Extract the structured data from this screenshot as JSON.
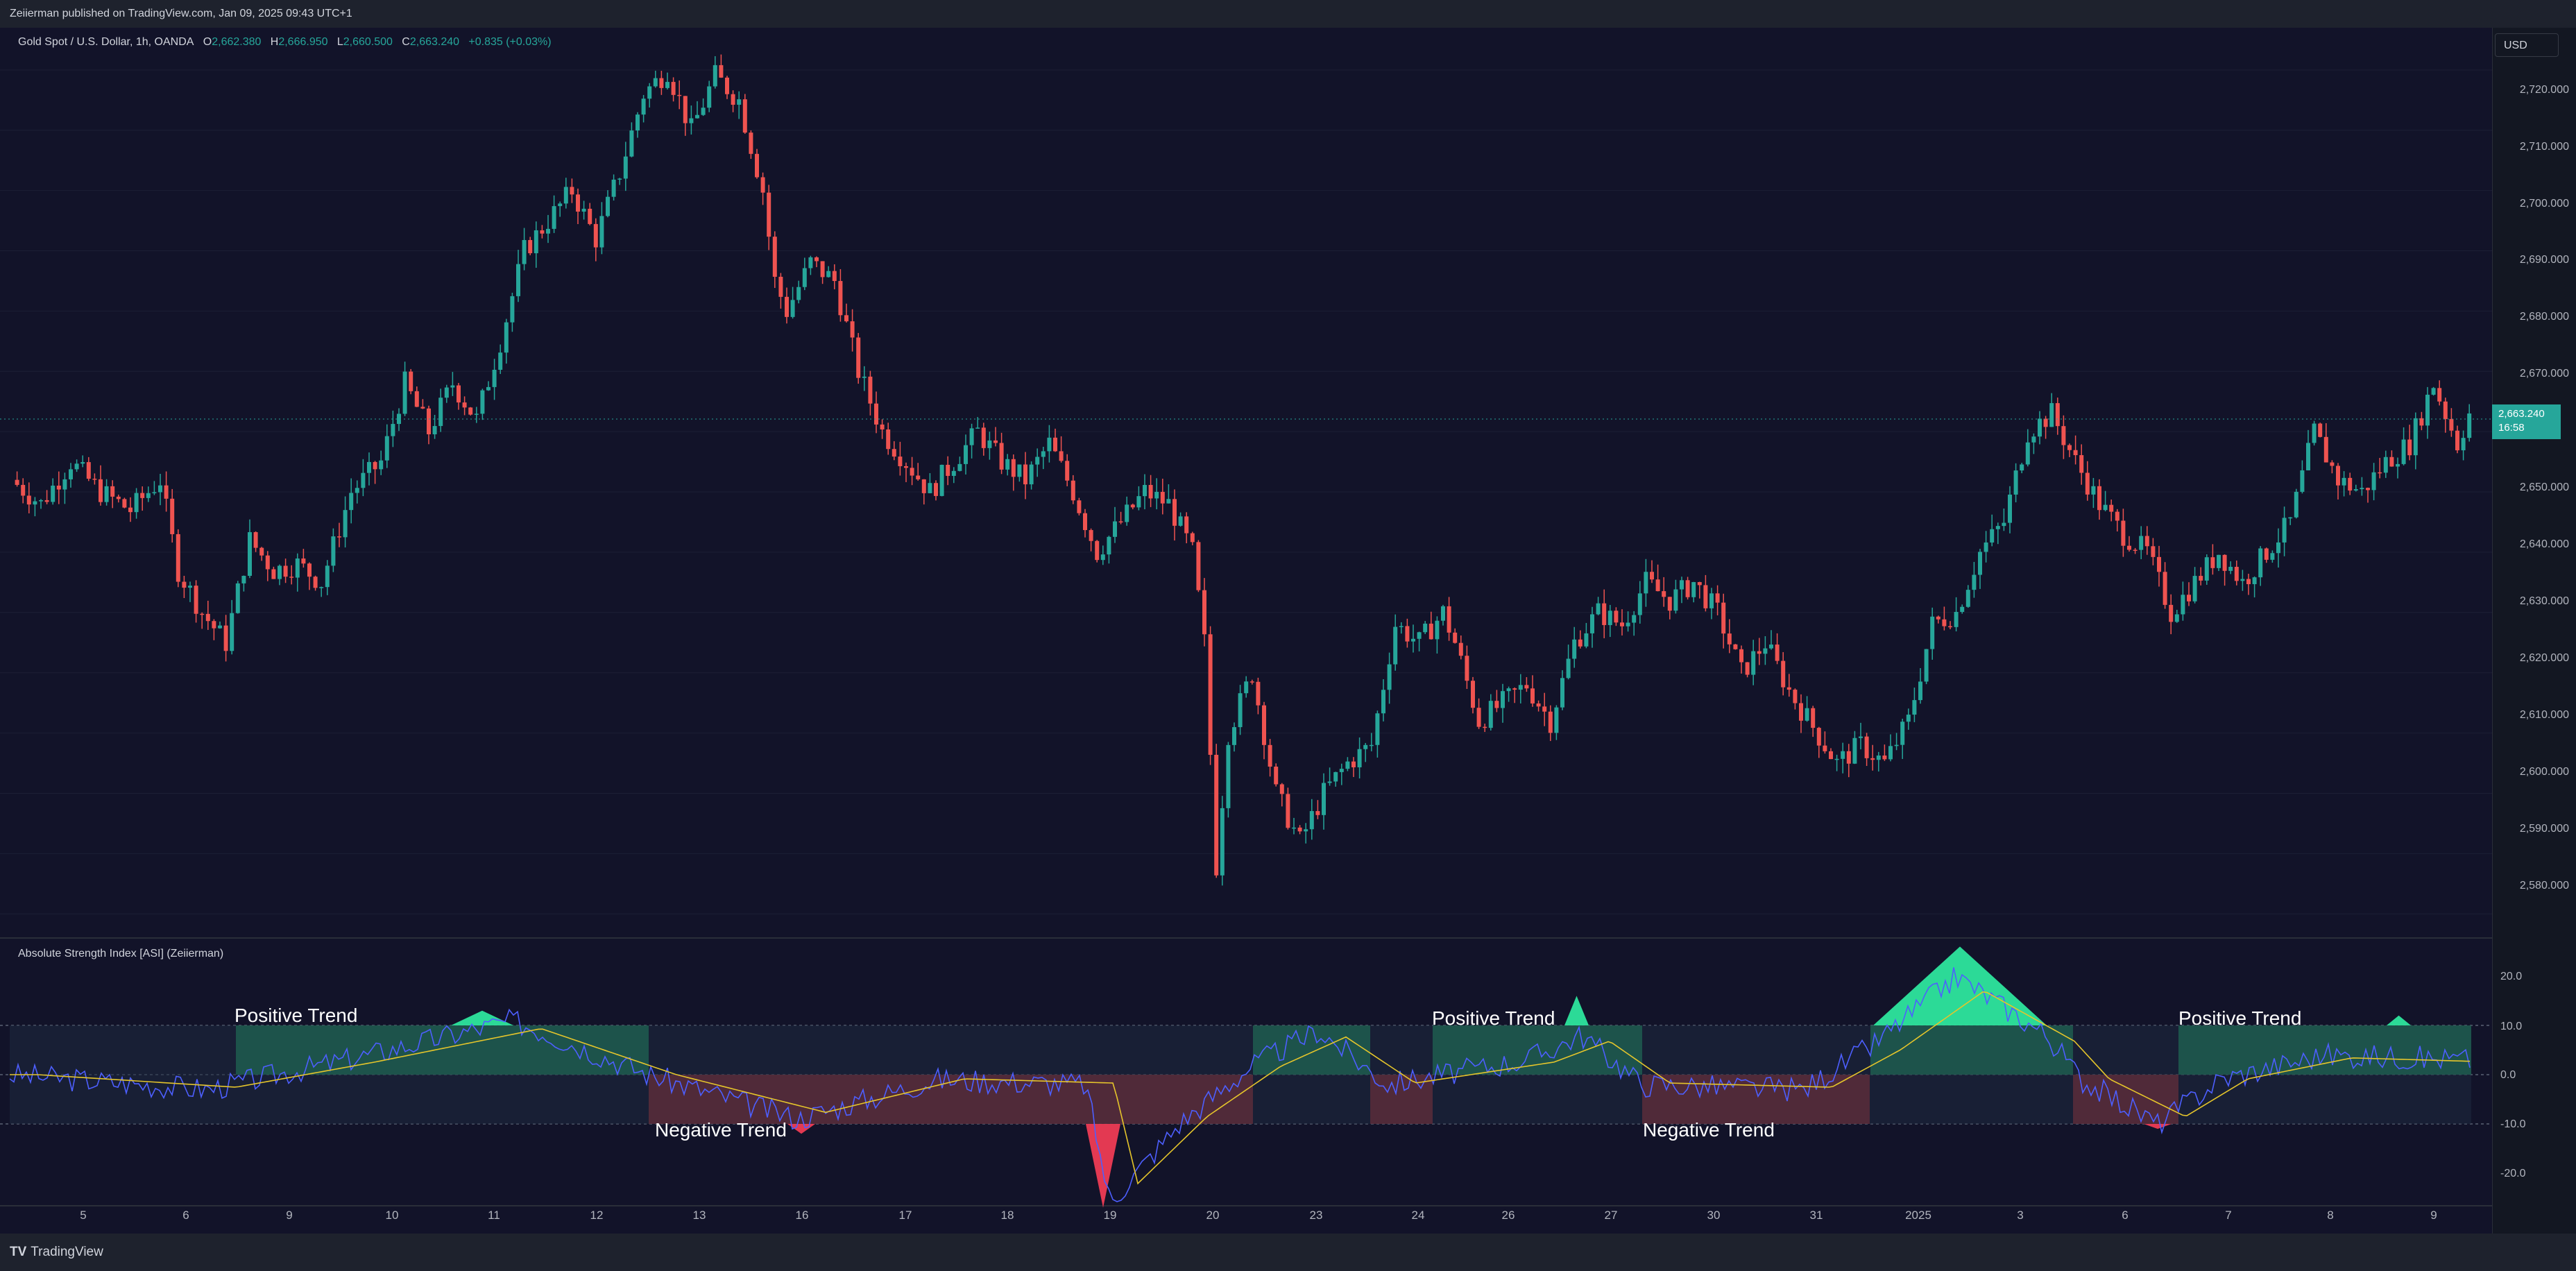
{
  "header": {
    "published_text": "Zeiierman published on TradingView.com, Jan 09, 2025 09:43 UTC+1"
  },
  "legend": {
    "symbol": "Gold Spot / U.S. Dollar, 1h, OANDA",
    "open_label": "O",
    "open_value": "2,662.380",
    "high_label": "H",
    "high_value": "2,666.950",
    "low_label": "L",
    "low_value": "2,660.500",
    "close_label": "C",
    "close_value": "2,663.240",
    "change": "+0.835 (+0.03%)"
  },
  "currency_button": "USD",
  "price_axis": [
    "2,720.000",
    "2,710.000",
    "2,700.000",
    "2,690.000",
    "2,680.000",
    "2,670.000",
    "2,650.000",
    "2,640.000",
    "2,630.000",
    "2,620.000",
    "2,610.000",
    "2,600.000",
    "2,590.000",
    "2,580.000"
  ],
  "current_price": {
    "price": "2,663.240",
    "countdown": "16:58"
  },
  "indicator": {
    "title": "Absolute Strength Index [ASI] (Zeiierman)",
    "axis": [
      "20.0",
      "10.0",
      "0.0",
      "-10.0",
      "-20.0"
    ],
    "labels": [
      "Positive Trend",
      "Positive Trend",
      "Positive Trend",
      "Negative Trend",
      "Negative Trend"
    ]
  },
  "time_axis": [
    "5",
    "6",
    "9",
    "10",
    "11",
    "12",
    "13",
    "16",
    "17",
    "18",
    "19",
    "20",
    "23",
    "24",
    "26",
    "27",
    "30",
    "31",
    "2025",
    "3",
    "6",
    "7",
    "8",
    "9"
  ],
  "footer": {
    "brand": "TradingView",
    "brand_mark": "TV"
  },
  "colors": {
    "up": "#26a69a",
    "down": "#ef5350",
    "background": "#121329",
    "asi_line": "#4d5fff",
    "signal_line": "#e5c52b"
  },
  "chart_data": {
    "type": "candlestick",
    "title": "Gold Spot / U.S. Dollar, 1h, OANDA",
    "ylim": [
      2576,
      2727
    ],
    "x_ticks": [
      "5",
      "6",
      "9",
      "10",
      "11",
      "12",
      "13",
      "16",
      "17",
      "18",
      "19",
      "20",
      "23",
      "24",
      "26",
      "27",
      "30",
      "31",
      "2025",
      "3",
      "6",
      "7",
      "8",
      "9"
    ],
    "anchors": [
      [
        0,
        2652
      ],
      [
        5,
        2648
      ],
      [
        10,
        2655
      ],
      [
        15,
        2650
      ],
      [
        20,
        2647
      ],
      [
        25,
        2652
      ],
      [
        28,
        2637
      ],
      [
        32,
        2630
      ],
      [
        36,
        2625
      ],
      [
        40,
        2642
      ],
      [
        44,
        2637
      ],
      [
        48,
        2638
      ],
      [
        52,
        2635
      ],
      [
        57,
        2650
      ],
      [
        62,
        2655
      ],
      [
        66,
        2668
      ],
      [
        70,
        2660
      ],
      [
        74,
        2668
      ],
      [
        78,
        2662
      ],
      [
        82,
        2675
      ],
      [
        86,
        2690
      ],
      [
        90,
        2695
      ],
      [
        94,
        2700
      ],
      [
        98,
        2692
      ],
      [
        102,
        2703
      ],
      [
        106,
        2716
      ],
      [
        110,
        2720
      ],
      [
        114,
        2710
      ],
      [
        118,
        2719
      ],
      [
        122,
        2715
      ],
      [
        126,
        2700
      ],
      [
        128,
        2685
      ],
      [
        130,
        2680
      ],
      [
        134,
        2688
      ],
      [
        138,
        2685
      ],
      [
        142,
        2670
      ],
      [
        146,
        2660
      ],
      [
        150,
        2655
      ],
      [
        154,
        2650
      ],
      [
        158,
        2655
      ],
      [
        162,
        2660
      ],
      [
        166,
        2655
      ],
      [
        170,
        2652
      ],
      [
        174,
        2658
      ],
      [
        178,
        2650
      ],
      [
        182,
        2640
      ],
      [
        186,
        2645
      ],
      [
        190,
        2650
      ],
      [
        194,
        2648
      ],
      [
        198,
        2640
      ],
      [
        200,
        2625
      ],
      [
        202,
        2588
      ],
      [
        204,
        2610
      ],
      [
        208,
        2620
      ],
      [
        212,
        2600
      ],
      [
        216,
        2592
      ],
      [
        220,
        2600
      ],
      [
        224,
        2605
      ],
      [
        228,
        2608
      ],
      [
        232,
        2628
      ],
      [
        236,
        2625
      ],
      [
        240,
        2630
      ],
      [
        242,
        2625
      ],
      [
        246,
        2612
      ],
      [
        250,
        2615
      ],
      [
        254,
        2618
      ],
      [
        258,
        2612
      ],
      [
        262,
        2625
      ],
      [
        266,
        2630
      ],
      [
        270,
        2628
      ],
      [
        274,
        2635
      ],
      [
        278,
        2632
      ],
      [
        282,
        2635
      ],
      [
        286,
        2630
      ],
      [
        290,
        2620
      ],
      [
        294,
        2625
      ],
      [
        298,
        2617
      ],
      [
        302,
        2611
      ],
      [
        306,
        2605
      ],
      [
        310,
        2608
      ],
      [
        314,
        2605
      ],
      [
        318,
        2612
      ],
      [
        322,
        2628
      ],
      [
        326,
        2630
      ],
      [
        330,
        2640
      ],
      [
        334,
        2645
      ],
      [
        338,
        2660
      ],
      [
        342,
        2663
      ],
      [
        346,
        2655
      ],
      [
        350,
        2648
      ],
      [
        354,
        2643
      ],
      [
        358,
        2640
      ],
      [
        362,
        2630
      ],
      [
        366,
        2635
      ],
      [
        370,
        2640
      ],
      [
        374,
        2635
      ],
      [
        378,
        2640
      ],
      [
        382,
        2645
      ],
      [
        386,
        2660
      ],
      [
        390,
        2652
      ],
      [
        394,
        2650
      ],
      [
        398,
        2655
      ],
      [
        402,
        2658
      ],
      [
        406,
        2668
      ],
      [
        410,
        2658
      ],
      [
        412,
        2663
      ]
    ]
  }
}
